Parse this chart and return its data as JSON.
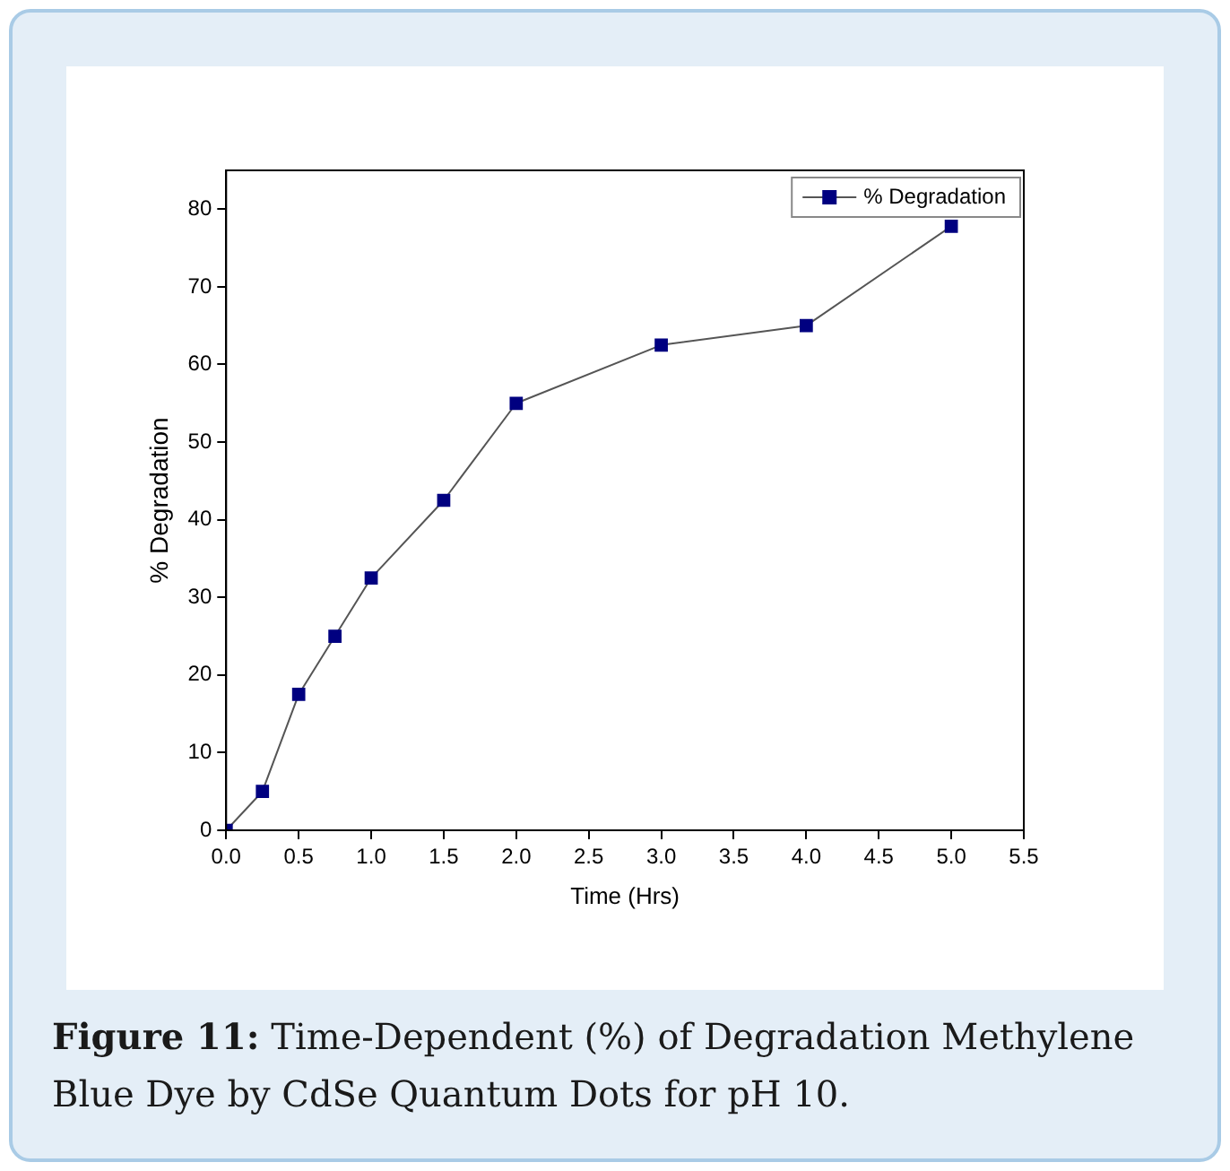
{
  "chart_data": {
    "type": "line",
    "xlabel": "Time (Hrs)",
    "ylabel": "% Degradation",
    "x": [
      0,
      0.25,
      0.5,
      0.75,
      1.0,
      1.5,
      2.0,
      3.0,
      4.0,
      5.0
    ],
    "series": [
      {
        "name": "% Degradation",
        "color": "#000080",
        "values": [
          0,
          5,
          17.5,
          25,
          32.5,
          42.5,
          55,
          62.5,
          65,
          77.8
        ]
      }
    ],
    "xlim": [
      0,
      5.5
    ],
    "xticks": [
      {
        "value": 0,
        "label": "0.0"
      },
      {
        "value": 0.5,
        "label": "0.5"
      },
      {
        "value": 1,
        "label": "1.0"
      },
      {
        "value": 1.5,
        "label": "1.5"
      },
      {
        "value": 2,
        "label": "2.0"
      },
      {
        "value": 2.5,
        "label": "2.5"
      },
      {
        "value": 3,
        "label": "3.0"
      },
      {
        "value": 3.5,
        "label": "3.5"
      },
      {
        "value": 4,
        "label": "4.0"
      },
      {
        "value": 4.5,
        "label": "4.5"
      },
      {
        "value": 5,
        "label": "5.0"
      },
      {
        "value": 5.5,
        "label": "5.5"
      }
    ],
    "ylim": [
      0,
      85
    ],
    "yticks": [
      0,
      10,
      20,
      30,
      40,
      50,
      60,
      70,
      80
    ],
    "grid": false,
    "legend": "top right",
    "marker": "square",
    "line_style": "solid",
    "annotations": [
      "Figure 11: Time-Dependent (%) of Degradation Methylene Blue Dye by CdSe Quantum Dots for pH 10."
    ]
  }
}
